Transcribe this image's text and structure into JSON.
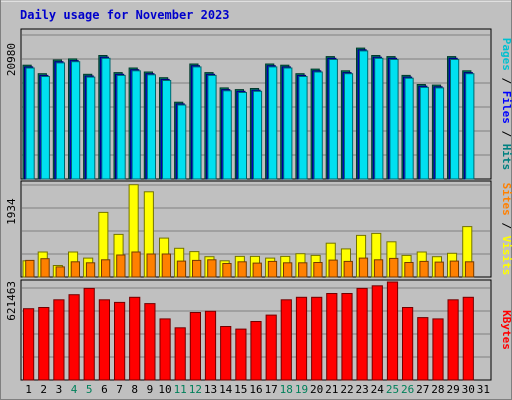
{
  "chart_data": {
    "type": "bar",
    "title": "Daily usage for November 2023",
    "categories": [
      "1",
      "2",
      "3",
      "4",
      "5",
      "6",
      "7",
      "8",
      "9",
      "10",
      "11",
      "12",
      "13",
      "14",
      "15",
      "16",
      "17",
      "18",
      "19",
      "20",
      "21",
      "22",
      "23",
      "24",
      "25",
      "26",
      "27",
      "28",
      "29",
      "30",
      "31"
    ],
    "weekend_days": [
      4,
      5,
      11,
      12,
      18,
      19,
      25,
      26
    ],
    "panels": [
      {
        "name": "hits-files-pages",
        "y_tick_label": "20980",
        "y_tick_value": 20980,
        "ylim": [
          0,
          26000
        ],
        "side_labels": [
          {
            "text": "Pages",
            "color": "#00c0d0"
          },
          {
            "text": " / ",
            "color": "#000000"
          },
          {
            "text": "Files",
            "color": "#0000ff"
          },
          {
            "text": " / ",
            "color": "#000000"
          },
          {
            "text": "Hits",
            "color": "#008080"
          }
        ],
        "series": [
          {
            "name": "Hits",
            "color": "#008060",
            "values": [
              20000,
              18500,
              20900,
              21100,
              18400,
              21700,
              18700,
              19500,
              18800,
              17800,
              13500,
              20200,
              18700,
              16000,
              15700,
              15900,
              20200,
              20000,
              18500,
              19300,
              21500,
              19000,
              23000,
              21700,
              21500,
              18200,
              16600,
              16500,
              21500,
              19000,
              0
            ]
          },
          {
            "name": "Files",
            "color": "#0000ff",
            "values": [
              19700,
              18200,
              20600,
              20800,
              18100,
              21400,
              18400,
              19200,
              18500,
              17500,
              13200,
              19900,
              18400,
              15700,
              15400,
              15600,
              19900,
              19700,
              18200,
              19000,
              21200,
              18700,
              22700,
              21400,
              21200,
              17900,
              16300,
              16200,
              21200,
              18700,
              0
            ]
          },
          {
            "name": "Pages",
            "color": "#00e0f0",
            "values": [
              19500,
              18000,
              20400,
              20600,
              17900,
              21200,
              18200,
              19000,
              18300,
              17300,
              13000,
              19700,
              18200,
              15500,
              15200,
              15400,
              19700,
              19500,
              18000,
              18800,
              21000,
              18500,
              22500,
              21200,
              21000,
              17700,
              16100,
              16000,
              21000,
              18500,
              0
            ]
          }
        ]
      },
      {
        "name": "visits-sites",
        "y_tick_label": "1934",
        "y_tick_value": 1934,
        "ylim": [
          0,
          2780
        ],
        "side_labels": [
          {
            "text": "Sites",
            "color": "#ff8000"
          },
          {
            "text": " / ",
            "color": "#000000"
          },
          {
            "text": "Visits",
            "color": "#ffff00"
          }
        ],
        "series": [
          {
            "name": "Visits",
            "color": "#ffff00",
            "values": [
              480,
              740,
              340,
              740,
              560,
              1910,
              1260,
              2730,
              2520,
              1150,
              850,
              750,
              600,
              480,
              610,
              610,
              560,
              610,
              690,
              640,
              1000,
              830,
              1230,
              1290,
              1040,
              640,
              740,
              600,
              700,
              1490,
              0
            ]
          },
          {
            "name": "Sites",
            "color": "#ff8000",
            "values": [
              490,
              540,
              300,
              450,
              420,
              510,
              650,
              740,
              680,
              680,
              470,
              490,
              510,
              400,
              450,
              410,
              460,
              420,
              420,
              430,
              500,
              460,
              560,
              510,
              550,
              430,
              460,
              440,
              470,
              450,
              0
            ]
          }
        ]
      },
      {
        "name": "kbytes",
        "y_tick_label": "621463",
        "y_tick_value": 621463,
        "ylim": [
          0,
          770000
        ],
        "side_labels": [
          {
            "text": "KBytes",
            "color": "#ff0000"
          }
        ],
        "series": [
          {
            "name": "KBytes",
            "color": "#ff0000",
            "values": [
              560000,
              570000,
              630000,
              670000,
              720000,
              630000,
              610000,
              650000,
              600000,
              480000,
              410000,
              530000,
              540000,
              420000,
              400000,
              460000,
              510000,
              630000,
              650000,
              650000,
              680000,
              680000,
              720000,
              740000,
              770000,
              570000,
              490000,
              480000,
              630000,
              650000,
              0
            ]
          }
        ]
      }
    ],
    "grid": true,
    "legend": "right-vertical"
  }
}
